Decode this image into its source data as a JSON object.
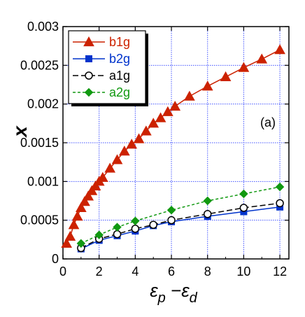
{
  "chart_data": {
    "type": "line",
    "ylabel": "x",
    "xlabel_base": "ε",
    "xlabel_sub1": "p",
    "xlabel_sep": " −ε",
    "xlabel_sub2": "d",
    "panel_label": "(a)",
    "xlim": [
      0,
      12.5
    ],
    "ylim": [
      0,
      0.003
    ],
    "x_ticks": [
      0,
      2,
      4,
      6,
      8,
      10,
      12
    ],
    "x_tick_labels": [
      "0",
      "2",
      "4",
      "6",
      "8",
      "10",
      "12"
    ],
    "y_ticks": [
      0,
      0.0005,
      0.001,
      0.0015,
      0.002,
      0.0025,
      0.003
    ],
    "y_tick_labels": [
      "0",
      "0.0005",
      "0.001",
      "0.0015",
      "0.002",
      "0.0025",
      "0.003"
    ],
    "grid": true,
    "legend_position": "top-left",
    "series": [
      {
        "name": "b1g",
        "color": "#cc2200",
        "marker": "triangle",
        "line_style": "solid",
        "x": [
          0.2,
          0.4,
          0.6,
          0.8,
          1.0,
          1.2,
          1.4,
          1.6,
          1.8,
          2.0,
          2.2,
          2.6,
          3.0,
          3.4,
          3.8,
          4.2,
          4.6,
          5.0,
          5.4,
          5.8,
          6.2,
          7.0,
          8.0,
          9.0,
          10.0,
          11.0,
          12.0
        ],
        "y": [
          0.0002,
          0.00029,
          0.00044,
          0.00055,
          0.00066,
          0.00074,
          0.00081,
          0.00088,
          0.00094,
          0.001,
          0.00105,
          0.00117,
          0.00128,
          0.00139,
          0.00148,
          0.00155,
          0.00165,
          0.00175,
          0.00182,
          0.0019,
          0.00197,
          0.0021,
          0.00223,
          0.00235,
          0.00247,
          0.00258,
          0.0027
        ]
      },
      {
        "name": "b2g",
        "color": "#0033cc",
        "marker": "square",
        "line_style": "solid",
        "x": [
          1.0,
          2.0,
          3.0,
          4.0,
          5.0,
          6.0,
          8.0,
          10.0,
          12.0
        ],
        "y": [
          0.00013,
          0.00024,
          0.0003,
          0.00036,
          0.00043,
          0.00048,
          0.00055,
          0.00061,
          0.00067
        ]
      },
      {
        "name": "a1g",
        "color": "#000000",
        "marker": "circle",
        "line_style": "dashed",
        "x": [
          1.0,
          2.0,
          3.0,
          4.0,
          5.0,
          6.0,
          8.0,
          10.0,
          12.0
        ],
        "y": [
          0.00014,
          0.00026,
          0.00032,
          0.00039,
          0.00044,
          0.0005,
          0.00058,
          0.00066,
          0.00072
        ]
      },
      {
        "name": "a2g",
        "color": "#119911",
        "marker": "diamond",
        "line_style": "dotted",
        "x": [
          1.0,
          2.0,
          3.0,
          4.0,
          6.0,
          8.0,
          10.0,
          12.0
        ],
        "y": [
          0.0002,
          0.00031,
          0.00041,
          0.00049,
          0.00063,
          0.00075,
          0.00084,
          0.00093
        ]
      }
    ]
  }
}
